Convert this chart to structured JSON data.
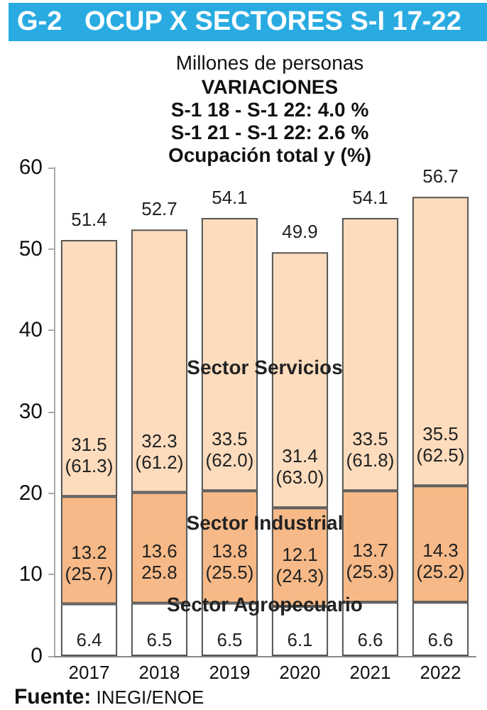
{
  "chart_data": {
    "type": "bar",
    "stacked": true,
    "title": "G-2   OCUP X SECTORES S-I 17-22",
    "subtitle": "Millones de personas",
    "annotations": [
      "VARIACIONES",
      "S-1 18 - S-1 22: 4.0 %",
      "S-1 21 - S-1 22: 2.6 %",
      "Ocupación total y (%)",
      {
        "text": "51.4",
        "x": "2017",
        "y": 51.1
      },
      {
        "text": "52.7",
        "x": "2018",
        "y": 52.4
      },
      {
        "text": "54.1",
        "x": "2019",
        "y": 53.8
      },
      {
        "text": "49.9",
        "x": "2020",
        "y": 49.6
      },
      {
        "text": "54.1",
        "x": "2021",
        "y": 53.8
      },
      {
        "text": "56.7",
        "x": "2022",
        "y": 56.4
      },
      "Fuente: INEGI/ENOE"
    ],
    "categories": [
      "2017",
      "2018",
      "2019",
      "2020",
      "2021",
      "2022"
    ],
    "series": [
      {
        "name": "Sector Agropecuario",
        "color": "#ffffff",
        "values": [
          6.4,
          6.5,
          6.5,
          6.1,
          6.6,
          6.6
        ],
        "value_labels": [
          "6.4",
          "6.5",
          "6.5",
          "6.1",
          "6.6",
          "6.6"
        ]
      },
      {
        "name": "Sector Industrial",
        "color": "#f6b987",
        "values": [
          13.2,
          13.6,
          13.8,
          12.1,
          13.7,
          14.3
        ],
        "value_labels": [
          "13.2\n(25.7)",
          "13.6\n25.8",
          "13.8\n(25.5)",
          "12.1\n(24.3)",
          "13.7\n(25.3)",
          "14.3\n(25.2)"
        ]
      },
      {
        "name": "Sector Servicios",
        "color": "#fcdcbd",
        "values": [
          31.5,
          32.3,
          33.5,
          31.4,
          33.5,
          35.5
        ],
        "value_labels": [
          "31.5\n(61.3)",
          "32.3\n(61.2)",
          "33.5\n(62.0)",
          "31.4\n(63.0)",
          "33.5\n(61.8)",
          "35.5\n(62.5)"
        ]
      }
    ],
    "ylim": [
      0,
      60
    ],
    "yticks": [
      0,
      10,
      20,
      30,
      40,
      50,
      60
    ],
    "grid": false,
    "legend": false
  }
}
